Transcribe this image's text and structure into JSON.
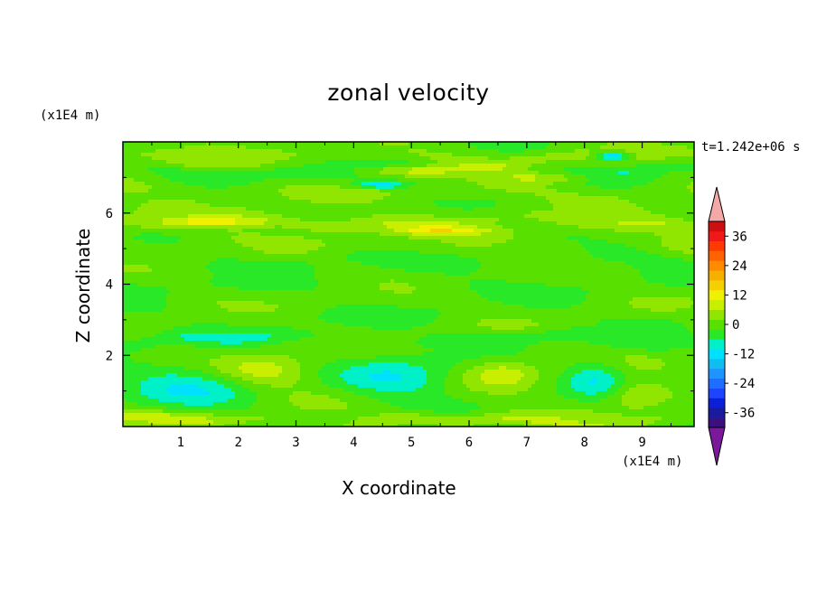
{
  "chart_data": {
    "type": "heatmap",
    "title": "zonal velocity",
    "xlabel": "X coordinate",
    "ylabel": "Z coordinate",
    "x_unit_label": "(x1E4 m)",
    "y_unit_label": "(x1E4 m)",
    "time_label": "t=1.242e+06 s",
    "xlim": [
      0,
      9.9
    ],
    "ylim": [
      0,
      8
    ],
    "x_ticks": [
      1,
      2,
      3,
      4,
      5,
      6,
      7,
      8,
      9
    ],
    "y_ticks": [
      2,
      4,
      6
    ],
    "colorbar": {
      "ticks": [
        36,
        24,
        12,
        0,
        -12,
        -24,
        -36
      ],
      "range": [
        -42,
        42
      ],
      "step": 4,
      "colors": [
        "#7a1a9a",
        "#3b0f80",
        "#1a1a9e",
        "#0b1fd6",
        "#1d44ff",
        "#1e6eff",
        "#1f94ff",
        "#10bdf0",
        "#00e0ff",
        "#00f0c8",
        "#28e828",
        "#58e000",
        "#90e600",
        "#c8ee00",
        "#f0f000",
        "#f5d000",
        "#f8b000",
        "#ff8c00",
        "#ff6200",
        "#ff3a00",
        "#f01818",
        "#cc1010",
        "#f4a8a8"
      ]
    },
    "field_features": [
      {
        "kind": "band",
        "z": 7.55,
        "value": 4,
        "thickness": 0.18
      },
      {
        "kind": "band",
        "z": 7.15,
        "value": -4,
        "thickness": 0.22
      },
      {
        "kind": "band",
        "z": 6.6,
        "value": 3,
        "thickness": 0.25
      },
      {
        "kind": "band",
        "z": 5.75,
        "value": 6,
        "thickness": 0.22
      },
      {
        "kind": "band",
        "z": 5.2,
        "value": 2,
        "thickness": 0.25
      },
      {
        "kind": "band",
        "z": 4.6,
        "value": -3,
        "thickness": 0.3
      },
      {
        "kind": "band",
        "z": 3.9,
        "value": -2,
        "thickness": 0.3
      },
      {
        "kind": "band",
        "z": 3.1,
        "value": -2,
        "thickness": 0.3
      },
      {
        "kind": "band",
        "z": 2.45,
        "value": -5,
        "thickness": 0.2
      },
      {
        "kind": "band",
        "z": 0.15,
        "value": 7,
        "thickness": 0.18
      },
      {
        "kind": "blob",
        "x": 2.4,
        "z": 1.55,
        "value": 10,
        "rx": 0.9,
        "rz": 0.45
      },
      {
        "kind": "blob",
        "x": 1.3,
        "z": 1.2,
        "value": -9,
        "rx": 1.2,
        "rz": 0.7
      },
      {
        "kind": "blob",
        "x": 4.8,
        "z": 1.4,
        "value": -10,
        "rx": 1.0,
        "rz": 0.55
      },
      {
        "kind": "blob",
        "x": 6.6,
        "z": 1.5,
        "value": 8,
        "rx": 0.6,
        "rz": 0.4
      },
      {
        "kind": "blob",
        "x": 8.9,
        "z": 0.9,
        "value": 8,
        "rx": 0.5,
        "rz": 0.35
      },
      {
        "kind": "blob",
        "x": 8.2,
        "z": 1.4,
        "value": -9,
        "rx": 0.5,
        "rz": 0.5
      },
      {
        "kind": "blob",
        "x": 8.5,
        "z": 7.6,
        "value": -18,
        "rx": 0.3,
        "rz": 0.12
      },
      {
        "kind": "blob",
        "x": 4.5,
        "z": 6.8,
        "value": -14,
        "rx": 0.5,
        "rz": 0.12
      },
      {
        "kind": "blob",
        "x": 5.0,
        "z": 7.2,
        "value": 9,
        "rx": 1.1,
        "rz": 0.15
      },
      {
        "kind": "blob",
        "x": 1.7,
        "z": 5.75,
        "value": 9,
        "rx": 1.0,
        "rz": 0.15
      },
      {
        "kind": "blob",
        "x": 7.3,
        "z": 7.0,
        "value": 7,
        "rx": 0.9,
        "rz": 0.15
      },
      {
        "kind": "blob",
        "x": 5.6,
        "z": 5.5,
        "value": 9,
        "rx": 0.8,
        "rz": 0.12
      }
    ]
  }
}
